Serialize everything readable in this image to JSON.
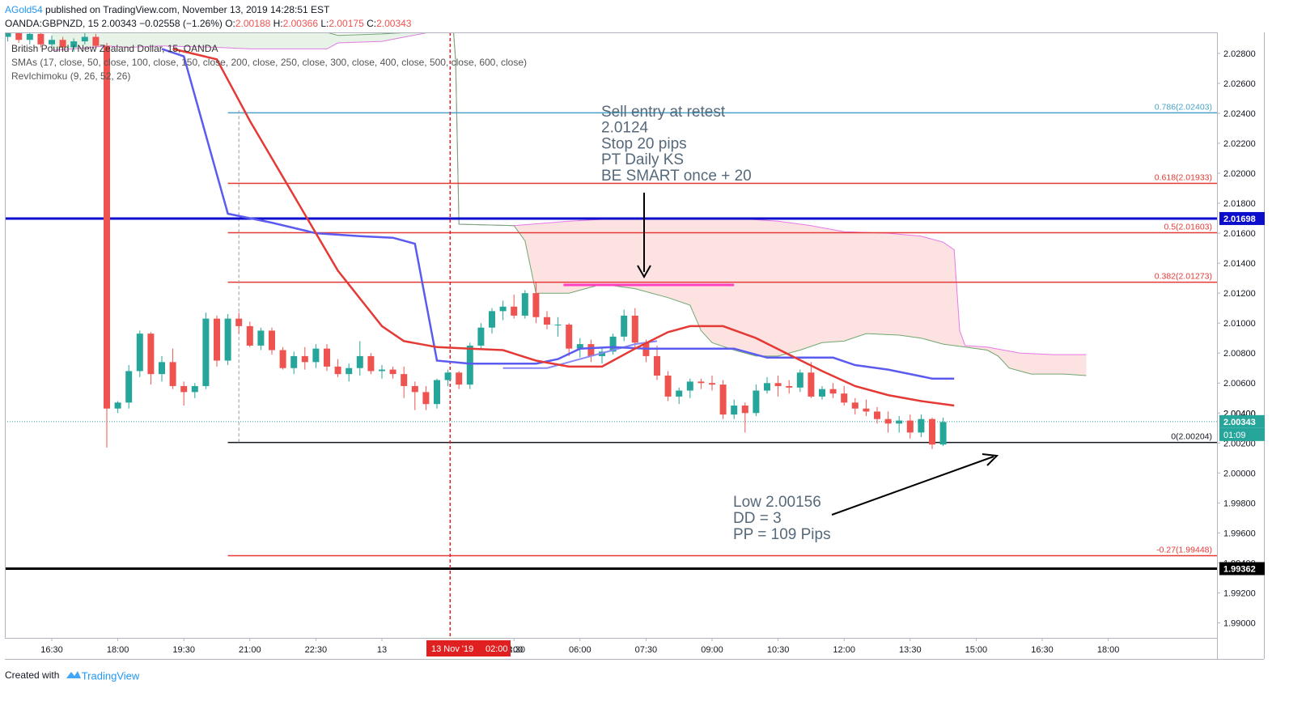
{
  "header": {
    "author": "AGold54",
    "published": " published on TradingView.com, November 13, 2019 14:28:51 EST",
    "symbol": "OANDA:GBPNZD, 15",
    "last": "2.00343",
    "change": "−0.02558 (−1.26%)",
    "o_label": "O:",
    "o_value": "2.00188",
    "h_label": "H:",
    "h_value": "2.00366",
    "l_label": "L:",
    "l_value": "2.00175",
    "c_label": "C:",
    "c_value": "2.00343"
  },
  "legend": {
    "instrument": "British Pound / New Zealand Dollar, 15, OANDA",
    "smas": "SMAs (17, close, 50, close, 100, close, 150, close, 200, close, 250, close, 300, close, 400, close, 500, close, 600, close)",
    "ichimoku": "RevIchimoku (9, 26, 52, 26)"
  },
  "footer": {
    "created_with": "Created with",
    "brand": "TradingView"
  },
  "colors": {
    "bull": "#26a69a",
    "bear": "#ef5350",
    "blue_line": "#0d0dcc",
    "sma_red": "#e53935",
    "sma_blue": "#5b5bf0",
    "sma_light": "#8888f5",
    "fib_red": "#e53935",
    "fib_top": "#4aa3c7",
    "cloud_red": "#fde0e0",
    "cloud_green": "#e3f2e3",
    "magenta": "#ff40c0"
  },
  "chart_data": {
    "type": "candlestick",
    "title": "British Pound / New Zealand Dollar, 15, OANDA",
    "y_range": [
      1.989,
      2.0294
    ],
    "y_ticks": [
      "2.02800",
      "2.02600",
      "2.02400",
      "2.02200",
      "2.02000",
      "2.01800",
      "2.01600",
      "2.01400",
      "2.01200",
      "2.01000",
      "2.00800",
      "2.00600",
      "2.00400",
      "2.00200",
      "2.00000",
      "1.99800",
      "1.99600",
      "1.99400",
      "1.99200",
      "1.99000"
    ],
    "y_tick_values": [
      2.028,
      2.026,
      2.024,
      2.022,
      2.02,
      2.018,
      2.016,
      2.014,
      2.012,
      2.01,
      2.008,
      2.006,
      2.004,
      2.002,
      2.0,
      1.998,
      1.996,
      1.994,
      1.992,
      1.99
    ],
    "x_ticks": [
      {
        "label": "16:30",
        "t": 0
      },
      {
        "label": "18:00",
        "t": 6
      },
      {
        "label": "19:30",
        "t": 12
      },
      {
        "label": "21:00",
        "t": 18
      },
      {
        "label": "22:30",
        "t": 24
      },
      {
        "label": "13",
        "t": 30
      },
      {
        "label": "04:30",
        "t": 42
      },
      {
        "label": "06:00",
        "t": 48
      },
      {
        "label": "07:30",
        "t": 54
      },
      {
        "label": "09:00",
        "t": 60
      },
      {
        "label": "10:30",
        "t": 66
      },
      {
        "label": "12:00",
        "t": 72
      },
      {
        "label": "13:30",
        "t": 78
      },
      {
        "label": "15:00",
        "t": 84
      },
      {
        "label": "16:30",
        "t": 90
      },
      {
        "label": "18:00",
        "t": 96
      }
    ],
    "x_cursor": {
      "date": "13 Nov '19",
      "time": "02:00",
      "t": 36.2,
      "partial_label": ":00"
    },
    "candles": [
      [
        2.0303,
        2.0307,
        2.0296,
        2.0299
      ],
      [
        2.0299,
        2.0303,
        2.0294,
        2.0301
      ],
      [
        2.0301,
        2.0304,
        2.0296,
        2.0297
      ],
      [
        2.0297,
        2.03,
        2.0291,
        2.0293
      ],
      [
        2.0293,
        2.0301,
        2.029,
        2.0299
      ],
      [
        2.0299,
        2.0302,
        2.0293,
        2.0295
      ],
      [
        2.0295,
        2.0299,
        2.0289,
        2.0291
      ],
      [
        2.0291,
        2.0298,
        2.0288,
        2.0296
      ],
      [
        2.0296,
        2.0298,
        2.0287,
        2.0289
      ],
      [
        2.0289,
        2.0296,
        2.0286,
        2.0293
      ],
      [
        2.0293,
        2.0294,
        2.0284,
        2.0286
      ],
      [
        2.0286,
        2.0292,
        2.0283,
        2.0289
      ],
      [
        2.0289,
        2.0291,
        2.0281,
        2.0284
      ],
      [
        2.0284,
        2.029,
        2.0281,
        2.0288
      ],
      [
        2.0288,
        2.0294,
        2.0286,
        2.0291
      ],
      [
        2.0291,
        2.0293,
        2.0283,
        2.0285
      ],
      [
        2.0285,
        2.0287,
        2.0017,
        2.0043
      ],
      [
        2.0043,
        2.0048,
        2.004,
        2.0047
      ],
      [
        2.0047,
        2.0072,
        2.0043,
        2.0068
      ],
      [
        2.0068,
        2.0095,
        2.0064,
        2.0093
      ],
      [
        2.0093,
        2.0094,
        2.0059,
        2.0066
      ],
      [
        2.0066,
        2.0078,
        2.0061,
        2.0074
      ],
      [
        2.0074,
        2.0083,
        2.0056,
        2.0058
      ],
      [
        2.0058,
        2.0061,
        2.0045,
        2.0054
      ],
      [
        2.0054,
        2.006,
        2.005,
        2.0058
      ],
      [
        2.0058,
        2.0107,
        2.0056,
        2.0103
      ],
      [
        2.0103,
        2.0105,
        2.0071,
        2.0075
      ],
      [
        2.0075,
        2.0106,
        2.0072,
        2.0103
      ],
      [
        2.0103,
        2.0107,
        2.0093,
        2.0098
      ],
      [
        2.0098,
        2.0101,
        2.0084,
        2.0085
      ],
      [
        2.0085,
        2.0097,
        2.0082,
        2.0095
      ],
      [
        2.0095,
        2.0097,
        2.0079,
        2.0082
      ],
      [
        2.0082,
        2.0084,
        2.0069,
        2.007
      ],
      [
        2.007,
        2.0081,
        2.0066,
        2.0078
      ],
      [
        2.0078,
        2.0084,
        2.0069,
        2.0074
      ],
      [
        2.0074,
        2.0086,
        2.007,
        2.0083
      ],
      [
        2.0083,
        2.0086,
        2.0068,
        2.0071
      ],
      [
        2.0071,
        2.0076,
        2.0064,
        2.0066
      ],
      [
        2.0066,
        2.0073,
        2.0061,
        2.007
      ],
      [
        2.007,
        2.0088,
        2.0065,
        2.0078
      ],
      [
        2.0078,
        2.008,
        2.0066,
        2.0068
      ],
      [
        2.0068,
        2.0072,
        2.0063,
        2.0069
      ],
      [
        2.0069,
        2.0071,
        2.0063,
        2.0066
      ],
      [
        2.0066,
        2.0071,
        2.005,
        2.0058
      ],
      [
        2.0058,
        2.0061,
        2.0042,
        2.0054
      ],
      [
        2.0054,
        2.0058,
        2.0042,
        2.0046
      ],
      [
        2.0046,
        2.0063,
        2.0043,
        2.0062
      ],
      [
        2.0062,
        2.0069,
        2.0058,
        2.0067
      ],
      [
        2.0067,
        2.0068,
        2.0056,
        2.0059
      ],
      [
        2.0059,
        2.0087,
        2.0056,
        2.0085
      ],
      [
        2.0085,
        2.01,
        2.0082,
        2.0097
      ],
      [
        2.0097,
        2.011,
        2.0093,
        2.0108
      ],
      [
        2.0108,
        2.0115,
        2.0102,
        2.0111
      ],
      [
        2.0111,
        2.0119,
        2.0103,
        2.0105
      ],
      [
        2.0105,
        2.0122,
        2.0103,
        2.012
      ],
      [
        2.012,
        2.0127,
        2.01,
        2.0104
      ],
      [
        2.0104,
        2.0108,
        2.0096,
        2.0099
      ],
      [
        2.0099,
        2.0104,
        2.0091,
        2.0099
      ],
      [
        2.0099,
        2.01,
        2.0078,
        2.0083
      ],
      [
        2.0083,
        2.009,
        2.0077,
        2.0086
      ],
      [
        2.0086,
        2.0089,
        2.0074,
        2.0078
      ],
      [
        2.0078,
        2.0084,
        2.0073,
        2.0081
      ],
      [
        2.0081,
        2.0093,
        2.0079,
        2.0091
      ],
      [
        2.0091,
        2.0109,
        2.0088,
        2.0105
      ],
      [
        2.0105,
        2.011,
        2.0084,
        2.0087
      ],
      [
        2.0087,
        2.0089,
        2.0074,
        2.0078
      ],
      [
        2.0078,
        2.0085,
        2.0062,
        2.0065
      ],
      [
        2.0065,
        2.0068,
        2.0048,
        2.0051
      ],
      [
        2.0051,
        2.0057,
        2.0046,
        2.0055
      ],
      [
        2.0055,
        2.0063,
        2.005,
        2.0061
      ],
      [
        2.0061,
        2.0063,
        2.0056,
        2.006
      ],
      [
        2.006,
        2.0065,
        2.0055,
        2.0059
      ],
      [
        2.0059,
        2.0062,
        2.0036,
        2.0039
      ],
      [
        2.0039,
        2.0049,
        2.0036,
        2.0045
      ],
      [
        2.0045,
        2.0047,
        2.0027,
        2.004
      ],
      [
        2.004,
        2.0059,
        2.0038,
        2.0055
      ],
      [
        2.0055,
        2.0064,
        2.0053,
        2.006
      ],
      [
        2.006,
        2.0065,
        2.0051,
        2.0058
      ],
      [
        2.0058,
        2.0062,
        2.0053,
        2.0057
      ],
      [
        2.0057,
        2.0069,
        2.0054,
        2.0067
      ],
      [
        2.0067,
        2.0074,
        2.005,
        2.0051
      ],
      [
        2.0051,
        2.0058,
        2.0049,
        2.0056
      ],
      [
        2.0056,
        2.006,
        2.005,
        2.0053
      ],
      [
        2.0053,
        2.0058,
        2.0045,
        2.0047
      ],
      [
        2.0047,
        2.005,
        2.0039,
        2.0043
      ],
      [
        2.0043,
        2.0049,
        2.0038,
        2.0041
      ],
      [
        2.0041,
        2.0044,
        2.0033,
        2.0036
      ],
      [
        2.0036,
        2.0041,
        2.0027,
        2.0033
      ],
      [
        2.0033,
        2.0038,
        2.0027,
        2.0035
      ],
      [
        2.0035,
        2.0039,
        2.0023,
        2.0027
      ],
      [
        2.0027,
        2.0039,
        2.0024,
        2.0036
      ],
      [
        2.0036,
        2.0037,
        2.0016,
        2.0019
      ],
      [
        2.0019,
        2.0037,
        2.0018,
        2.0034
      ]
    ],
    "sma_red": [
      [
        11,
        2.0283
      ],
      [
        15,
        2.0276
      ],
      [
        18,
        2.0235
      ],
      [
        22,
        2.0185
      ],
      [
        26,
        2.0135
      ],
      [
        30,
        2.0098
      ],
      [
        32,
        2.0088
      ],
      [
        35,
        2.0084
      ],
      [
        38,
        2.0083
      ],
      [
        41,
        2.0082
      ],
      [
        44,
        2.0075
      ],
      [
        47,
        2.0071
      ],
      [
        50,
        2.0071
      ],
      [
        53,
        2.0083
      ],
      [
        56,
        2.0094
      ],
      [
        58,
        2.0098
      ],
      [
        61,
        2.0098
      ],
      [
        64,
        2.009
      ],
      [
        67,
        2.0079
      ],
      [
        70,
        2.0068
      ],
      [
        73,
        2.0058
      ],
      [
        76,
        2.0052
      ],
      [
        79,
        2.0048
      ],
      [
        82,
        2.0045
      ]
    ],
    "sma_blue": [
      [
        10,
        2.0283
      ],
      [
        12,
        2.0278
      ],
      [
        16,
        2.0173
      ],
      [
        20,
        2.0167
      ],
      [
        24,
        2.016
      ],
      [
        28,
        2.0158
      ],
      [
        31,
        2.0157
      ],
      [
        33,
        2.0153
      ],
      [
        35,
        2.0075
      ],
      [
        38,
        2.0073
      ],
      [
        41,
        2.0073
      ],
      [
        44,
        2.0073
      ],
      [
        46,
        2.0076
      ],
      [
        48,
        2.0083
      ],
      [
        51,
        2.0084
      ],
      [
        54,
        2.0083
      ],
      [
        57,
        2.0083
      ],
      [
        60,
        2.0083
      ],
      [
        62,
        2.0083
      ],
      [
        65,
        2.0077
      ],
      [
        68,
        2.0077
      ],
      [
        71,
        2.0077
      ],
      [
        73,
        2.0072
      ],
      [
        76,
        2.0069
      ],
      [
        78,
        2.0066
      ],
      [
        80,
        2.0063
      ],
      [
        82,
        2.0063
      ]
    ],
    "sma_light": [
      [
        41,
        2.007
      ],
      [
        45,
        2.007
      ],
      [
        47,
        2.0074
      ],
      [
        50,
        2.008
      ],
      [
        53,
        2.0086
      ],
      [
        55,
        2.0088
      ]
    ],
    "cloud_top": [
      [
        35,
        2.0295
      ],
      [
        36.5,
        2.0295
      ],
      [
        36.7,
        2.0275
      ],
      [
        37,
        2.0166
      ],
      [
        42,
        2.0165
      ],
      [
        47,
        2.0168
      ],
      [
        52,
        2.017
      ],
      [
        57,
        2.017
      ],
      [
        62,
        2.017
      ],
      [
        66,
        2.0168
      ],
      [
        69,
        2.0165
      ],
      [
        72,
        2.0161
      ],
      [
        76,
        2.016
      ],
      [
        79,
        2.0158
      ],
      [
        81,
        2.0154
      ],
      [
        82,
        2.0149
      ],
      [
        82.5,
        2.0095
      ],
      [
        83,
        2.0085
      ],
      [
        85,
        2.0084
      ],
      [
        88,
        2.008
      ],
      [
        91,
        2.0079
      ],
      [
        94,
        2.0079
      ]
    ],
    "cloud_bottom": [
      [
        35,
        2.0295
      ],
      [
        36.5,
        2.0295
      ],
      [
        36.7,
        2.0275
      ],
      [
        37,
        2.0166
      ],
      [
        42,
        2.0165
      ],
      [
        43,
        2.0155
      ],
      [
        44,
        2.012
      ],
      [
        47,
        2.012
      ],
      [
        50,
        2.0126
      ],
      [
        53,
        2.0123
      ],
      [
        56,
        2.0117
      ],
      [
        58,
        2.0112
      ],
      [
        59,
        2.0095
      ],
      [
        60,
        2.0087
      ],
      [
        62,
        2.0082
      ],
      [
        64,
        2.0078
      ],
      [
        66,
        2.0078
      ],
      [
        68,
        2.0082
      ],
      [
        70,
        2.0087
      ],
      [
        72,
        2.0088
      ],
      [
        74,
        2.0093
      ],
      [
        77,
        2.0092
      ],
      [
        79,
        2.009
      ],
      [
        81,
        2.0086
      ],
      [
        83,
        2.0084
      ],
      [
        85,
        2.0082
      ],
      [
        86,
        2.0078
      ],
      [
        87,
        2.007
      ],
      [
        89,
        2.0066
      ],
      [
        92,
        2.0066
      ],
      [
        94,
        2.0065
      ]
    ],
    "early_cloud_top": [
      [
        0,
        2.0299
      ],
      [
        5,
        2.0299
      ],
      [
        10,
        2.0298
      ],
      [
        15,
        2.0297
      ],
      [
        20,
        2.0296
      ],
      [
        24,
        2.0296
      ],
      [
        26,
        2.0292
      ],
      [
        30,
        2.0293
      ],
      [
        35,
        2.0295
      ]
    ],
    "early_cloud_bottom": [
      [
        0,
        2.0282
      ],
      [
        2,
        2.0283
      ],
      [
        5,
        2.0285
      ],
      [
        7,
        2.0284
      ],
      [
        10,
        2.0285
      ],
      [
        15,
        2.0284
      ],
      [
        18,
        2.0283
      ],
      [
        22,
        2.0283
      ],
      [
        25,
        2.0283
      ],
      [
        26,
        2.0287
      ],
      [
        30,
        2.0288
      ],
      [
        35,
        2.0295
      ]
    ],
    "fib_levels": [
      {
        "label": "0.786(2.02403)",
        "value": 2.02403
      },
      {
        "label": "0.618(2.01933)",
        "value": 2.01933
      },
      {
        "label": "0.5(2.01603)",
        "value": 2.01603
      },
      {
        "label": "0.382(2.01273)",
        "value": 2.01273
      },
      {
        "label": "0(2.00204)",
        "value": 2.00204
      },
      {
        "label": "-0.27(1.99448)",
        "value": 1.99448
      }
    ],
    "hlines": [
      {
        "label": "2.01698",
        "value": 2.01698
      },
      {
        "label": "1.99362",
        "value": 1.99362
      }
    ],
    "magenta_line": {
      "value": 2.01255,
      "t_start": 46.5,
      "t_end": 62
    },
    "price_label": "2.00343",
    "price_value": 2.00343,
    "countdown": "01:09",
    "partial_tick_label": "2.00400",
    "annotation_top": [
      "Sell entry at retest",
      "2.0124",
      "Stop 20 pips",
      "PT Daily KS",
      "BE SMART once + 20"
    ],
    "annotation_bottom": [
      "Low 2.00156",
      "DD = 3",
      "PP = 109 Pips"
    ]
  }
}
